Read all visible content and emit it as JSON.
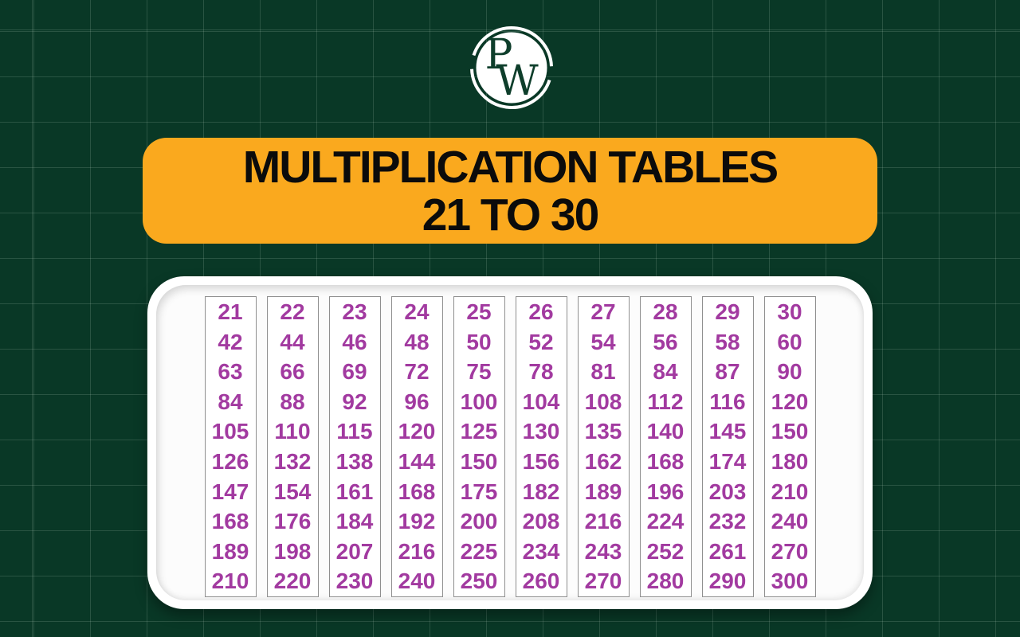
{
  "theme": {
    "background": "#093826",
    "grid_line": "rgba(205,228,212,0.16)",
    "banner_bg": "#FAA91E",
    "banner_text": "#0B0B0B",
    "card_bg": "#FFFFFF",
    "number_color": "#A23AA0",
    "column_border": "#8F8F8F",
    "logo_green": "#0E3E2B"
  },
  "logo": {
    "letter_p": "P",
    "letter_w": "W"
  },
  "banner": {
    "line1": "MULTIPLICATION TABLES",
    "line2": "21 TO 30"
  },
  "tables": {
    "columns": [
      {
        "base": 21,
        "values": [
          21,
          42,
          63,
          84,
          105,
          126,
          147,
          168,
          189,
          210
        ]
      },
      {
        "base": 22,
        "values": [
          22,
          44,
          66,
          88,
          110,
          132,
          154,
          176,
          198,
          220
        ]
      },
      {
        "base": 23,
        "values": [
          23,
          46,
          69,
          92,
          115,
          138,
          161,
          184,
          207,
          230
        ]
      },
      {
        "base": 24,
        "values": [
          24,
          48,
          72,
          96,
          120,
          144,
          168,
          192,
          216,
          240
        ]
      },
      {
        "base": 25,
        "values": [
          25,
          50,
          75,
          100,
          125,
          150,
          175,
          200,
          225,
          250
        ]
      },
      {
        "base": 26,
        "values": [
          26,
          52,
          78,
          104,
          130,
          156,
          182,
          208,
          234,
          260
        ]
      },
      {
        "base": 27,
        "values": [
          27,
          54,
          81,
          108,
          135,
          162,
          189,
          216,
          243,
          270
        ]
      },
      {
        "base": 28,
        "values": [
          28,
          56,
          84,
          112,
          140,
          168,
          196,
          224,
          252,
          280
        ]
      },
      {
        "base": 29,
        "values": [
          29,
          58,
          87,
          116,
          145,
          174,
          203,
          232,
          261,
          290
        ]
      },
      {
        "base": 30,
        "values": [
          30,
          60,
          90,
          120,
          150,
          180,
          210,
          240,
          270,
          300
        ]
      }
    ]
  }
}
